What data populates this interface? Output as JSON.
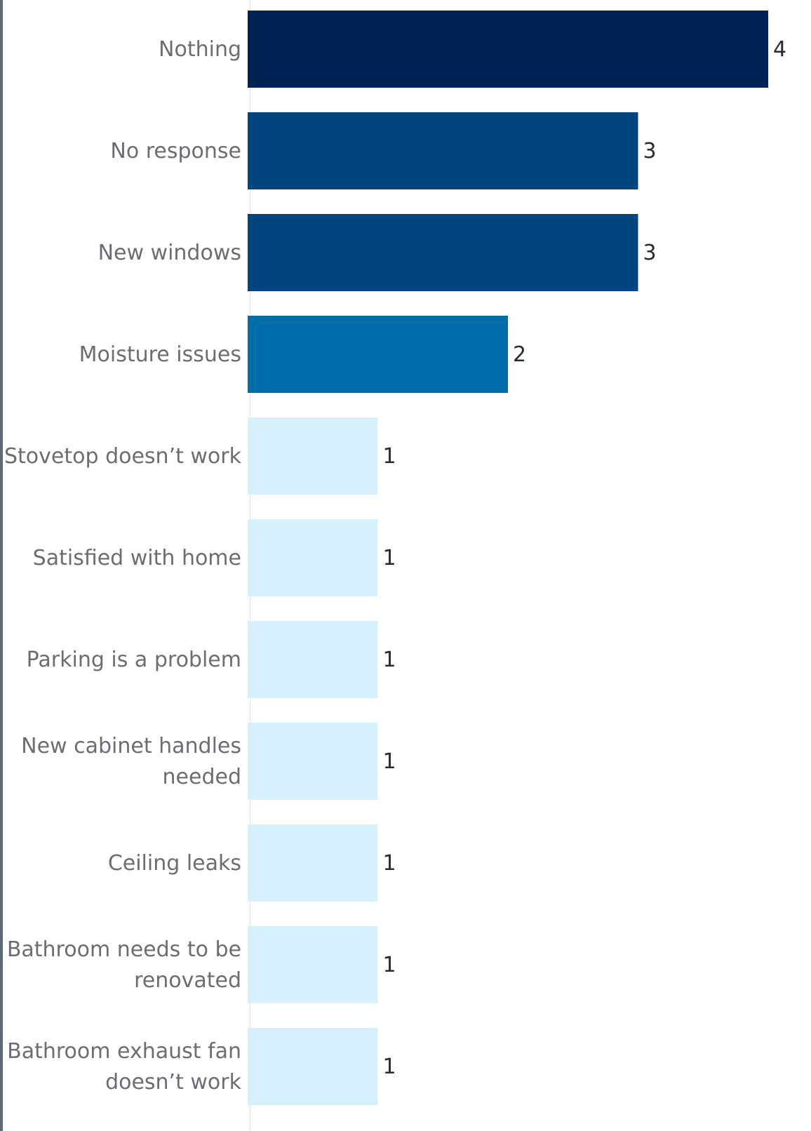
{
  "chart_data": {
    "type": "bar",
    "orientation": "horizontal",
    "categories": [
      [
        "Nothing"
      ],
      [
        "No response"
      ],
      [
        "New windows"
      ],
      [
        "Moisture issues"
      ],
      [
        "Stovetop doesn’t work"
      ],
      [
        "Satisfied with home"
      ],
      [
        "Parking is a problem"
      ],
      [
        "New cabinet handles",
        "needed"
      ],
      [
        "Ceiling leaks"
      ],
      [
        "Bathroom needs to be",
        "renovated"
      ],
      [
        "Bathroom exhaust fan",
        "doesn’t work"
      ]
    ],
    "values": [
      4,
      3,
      3,
      2,
      1,
      1,
      1,
      1,
      1,
      1,
      1
    ],
    "xlim": [
      0,
      4
    ],
    "grid": false,
    "colors": {
      "4": "#002255",
      "3": "#00457e",
      "2": "#006eac",
      "1": "#d6f1fd"
    }
  }
}
